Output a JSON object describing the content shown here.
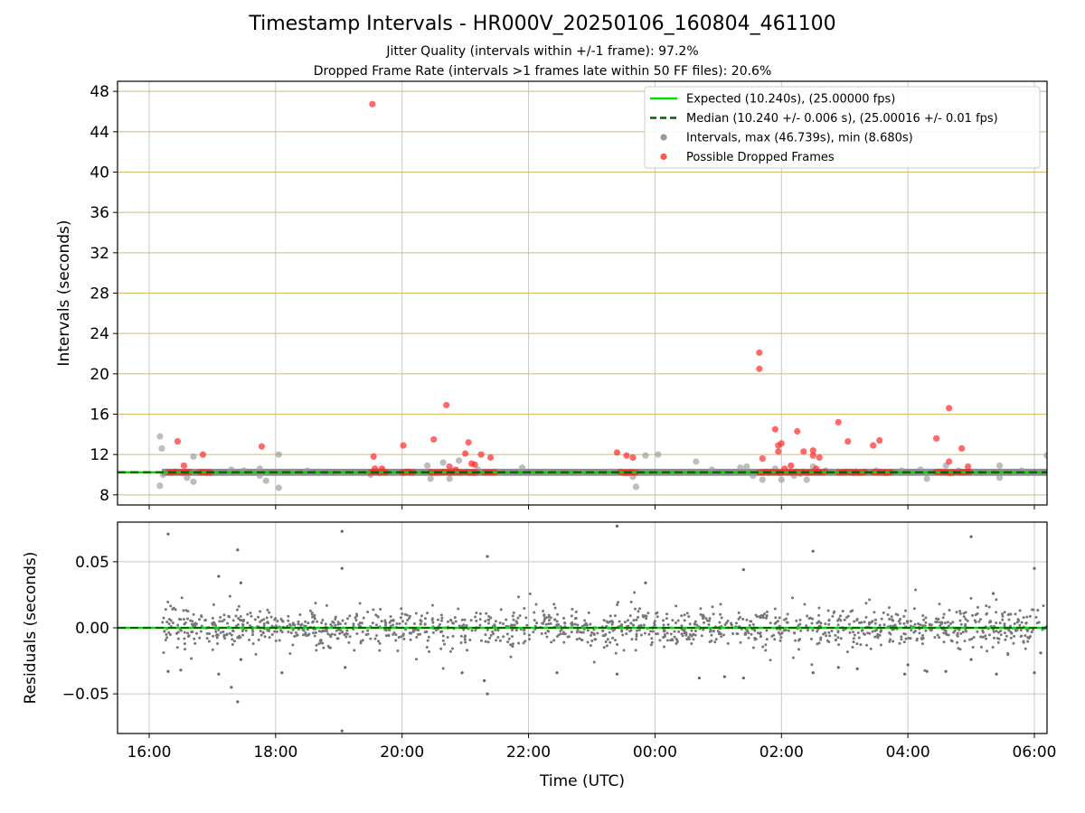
{
  "header": {
    "title": "Timestamp Intervals - HR000V_20250106_160804_461100",
    "subtitle_1": "Jitter Quality (intervals within +/-1 frame): 97.2%",
    "subtitle_2": "Dropped Frame Rate (intervals >1 frames late within 50 FF files): 20.6%"
  },
  "colors": {
    "expected": "#00dd00",
    "median": "#006400",
    "intervals": "#808080",
    "dropped": "#ff0000",
    "hgrid_top": "#d4bb6a",
    "grid": "#c8c8c8"
  },
  "chart_data": [
    {
      "type": "scatter",
      "ylabel": "Intervals (seconds)",
      "ylim": [
        7,
        49
      ],
      "yticks": [
        8,
        12,
        16,
        20,
        24,
        28,
        32,
        36,
        40,
        44,
        48
      ],
      "xlim_hours": [
        15.5,
        30.2
      ],
      "grid": true,
      "legend_position": "upper right",
      "legend": [
        {
          "label": "Expected (10.240s), (25.00000 fps)",
          "style": "solid-line",
          "color": "#00dd00"
        },
        {
          "label": "Median (10.240 +/- 0.006 s), (25.00016 +/- 0.01 fps)",
          "style": "dashed-line",
          "color": "#006400"
        },
        {
          "label": "Intervals, max (46.739s), min (8.680s)",
          "style": "marker",
          "color": "#999999"
        },
        {
          "label": "Possible Dropped Frames",
          "style": "marker",
          "color": "#ff5555"
        }
      ],
      "expected_y": 10.24,
      "median_y": 10.24,
      "baseline_band": {
        "y": 10.24,
        "x_start": 16.2,
        "x_end": 30.2
      },
      "series": [
        {
          "name": "Intervals, max (46.739s), min (8.680s)",
          "points": [
            [
              16.17,
              13.8
            ],
            [
              16.2,
              12.6
            ],
            [
              16.17,
              8.9
            ],
            [
              16.22,
              10.0
            ],
            [
              16.6,
              9.7
            ],
            [
              16.7,
              9.3
            ],
            [
              16.7,
              11.8
            ],
            [
              16.9,
              10.2
            ],
            [
              17.3,
              10.5
            ],
            [
              17.5,
              10.4
            ],
            [
              17.75,
              10.6
            ],
            [
              17.75,
              9.9
            ],
            [
              17.85,
              9.4
            ],
            [
              18.05,
              12.0
            ],
            [
              18.05,
              8.7
            ],
            [
              18.3,
              10.3
            ],
            [
              18.5,
              10.4
            ],
            [
              18.7,
              10.3
            ],
            [
              19.0,
              10.2
            ],
            [
              19.5,
              10.0
            ],
            [
              19.7,
              10.4
            ],
            [
              20.4,
              10.9
            ],
            [
              20.45,
              9.6
            ],
            [
              20.65,
              11.2
            ],
            [
              20.75,
              9.6
            ],
            [
              20.8,
              10.4
            ],
            [
              20.9,
              11.4
            ],
            [
              21.2,
              10.5
            ],
            [
              21.5,
              10.3
            ],
            [
              21.9,
              10.7
            ],
            [
              22.3,
              10.3
            ],
            [
              22.8,
              10.2
            ],
            [
              23.3,
              10.3
            ],
            [
              23.65,
              9.8
            ],
            [
              23.7,
              8.8
            ],
            [
              23.85,
              11.9
            ],
            [
              24.05,
              12.0
            ],
            [
              24.65,
              11.3
            ],
            [
              24.9,
              10.5
            ],
            [
              25.35,
              10.7
            ],
            [
              25.45,
              10.8
            ],
            [
              25.55,
              9.9
            ],
            [
              25.7,
              9.5
            ],
            [
              25.9,
              10.6
            ],
            [
              26.0,
              9.5
            ],
            [
              26.1,
              10.2
            ],
            [
              26.2,
              9.9
            ],
            [
              26.3,
              10.1
            ],
            [
              26.4,
              9.5
            ],
            [
              26.5,
              10.8
            ],
            [
              26.7,
              10.4
            ],
            [
              26.9,
              10.3
            ],
            [
              27.3,
              10.2
            ],
            [
              27.5,
              10.4
            ],
            [
              27.9,
              10.4
            ],
            [
              28.2,
              10.5
            ],
            [
              28.3,
              10.3
            ],
            [
              28.3,
              9.6
            ],
            [
              28.6,
              10.9
            ],
            [
              28.8,
              10.4
            ],
            [
              29.0,
              10.2
            ],
            [
              29.3,
              10.2
            ],
            [
              29.45,
              10.9
            ],
            [
              29.45,
              9.7
            ],
            [
              29.8,
              10.4
            ],
            [
              30.2,
              11.9
            ]
          ]
        },
        {
          "name": "Possible Dropped Frames",
          "points": [
            [
              16.45,
              13.3
            ],
            [
              16.55,
              10.9
            ],
            [
              16.85,
              12.0
            ],
            [
              17.78,
              12.8
            ],
            [
              19.53,
              46.739
            ],
            [
              19.55,
              11.8
            ],
            [
              19.57,
              10.6
            ],
            [
              19.68,
              10.6
            ],
            [
              20.02,
              12.9
            ],
            [
              20.5,
              13.5
            ],
            [
              20.7,
              16.9
            ],
            [
              20.75,
              10.8
            ],
            [
              20.85,
              10.5
            ],
            [
              21.0,
              12.1
            ],
            [
              21.05,
              13.2
            ],
            [
              21.1,
              11.1
            ],
            [
              21.15,
              11.0
            ],
            [
              21.25,
              12.0
            ],
            [
              21.4,
              11.7
            ],
            [
              23.4,
              12.2
            ],
            [
              23.55,
              11.9
            ],
            [
              23.65,
              11.7
            ],
            [
              25.65,
              22.1
            ],
            [
              25.65,
              20.5
            ],
            [
              25.7,
              11.6
            ],
            [
              25.9,
              14.5
            ],
            [
              25.95,
              12.9
            ],
            [
              25.95,
              12.3
            ],
            [
              26.0,
              13.1
            ],
            [
              26.05,
              10.6
            ],
            [
              26.15,
              10.9
            ],
            [
              26.25,
              14.3
            ],
            [
              26.35,
              12.3
            ],
            [
              26.5,
              12.4
            ],
            [
              26.5,
              11.9
            ],
            [
              26.6,
              11.7
            ],
            [
              26.55,
              10.6
            ],
            [
              26.9,
              15.2
            ],
            [
              27.05,
              13.3
            ],
            [
              27.45,
              12.9
            ],
            [
              27.55,
              13.4
            ],
            [
              28.45,
              13.6
            ],
            [
              28.65,
              16.6
            ],
            [
              28.65,
              11.3
            ],
            [
              28.85,
              12.6
            ],
            [
              28.95,
              10.8
            ]
          ],
          "clusters": [
            [
              16.3,
              16.45
            ],
            [
              16.5,
              16.65
            ],
            [
              16.8,
              17.0
            ],
            [
              19.5,
              19.75
            ],
            [
              20.0,
              20.2
            ],
            [
              20.45,
              20.95
            ],
            [
              21.0,
              21.2
            ],
            [
              21.3,
              21.5
            ],
            [
              23.45,
              23.7
            ],
            [
              25.65,
              26.05
            ],
            [
              26.1,
              26.7
            ],
            [
              26.9,
              27.35
            ],
            [
              27.45,
              27.75
            ],
            [
              28.45,
              28.75
            ],
            [
              28.8,
              29.0
            ]
          ]
        }
      ]
    },
    {
      "type": "scatter",
      "ylabel": "Residuals (seconds)",
      "xlabel": "Time (UTC)",
      "ylim": [
        -0.08,
        0.08
      ],
      "yticks": [
        -0.05,
        0.0,
        0.05
      ],
      "ytick_labels": [
        "−0.05",
        "0.00",
        "0.05"
      ],
      "xlim_hours": [
        15.5,
        30.2
      ],
      "xticks_hours": [
        16,
        18,
        20,
        22,
        24,
        26,
        28,
        30
      ],
      "xtick_labels": [
        "16:00",
        "18:00",
        "20:00",
        "22:00",
        "00:00",
        "02:00",
        "04:00",
        "06:00"
      ],
      "grid": true,
      "expected_y": 0.0,
      "series": [
        {
          "name": "Residuals",
          "x_range": [
            16.2,
            30.2
          ],
          "point_count": 1400,
          "core_spread": 0.007,
          "outliers": [
            [
              16.3,
              0.071
            ],
            [
              16.3,
              -0.033
            ],
            [
              16.5,
              -0.032
            ],
            [
              17.1,
              0.039
            ],
            [
              17.1,
              -0.035
            ],
            [
              17.3,
              -0.045
            ],
            [
              17.4,
              0.059
            ],
            [
              17.4,
              -0.056
            ],
            [
              17.45,
              0.034
            ],
            [
              17.45,
              -0.024
            ],
            [
              18.1,
              -0.034
            ],
            [
              19.05,
              0.073
            ],
            [
              19.05,
              0.045
            ],
            [
              19.05,
              -0.078
            ],
            [
              19.1,
              -0.03
            ],
            [
              20.95,
              -0.034
            ],
            [
              21.3,
              -0.04
            ],
            [
              21.35,
              0.054
            ],
            [
              21.35,
              -0.05
            ],
            [
              22.45,
              -0.034
            ],
            [
              23.4,
              0.077
            ],
            [
              23.4,
              -0.035
            ],
            [
              23.85,
              0.034
            ],
            [
              24.7,
              -0.038
            ],
            [
              25.1,
              -0.037
            ],
            [
              25.4,
              0.044
            ],
            [
              25.4,
              -0.038
            ],
            [
              26.5,
              0.058
            ],
            [
              26.5,
              -0.034
            ],
            [
              26.9,
              -0.03
            ],
            [
              27.2,
              -0.031
            ],
            [
              27.95,
              -0.035
            ],
            [
              28.0,
              -0.028
            ],
            [
              28.3,
              -0.033
            ],
            [
              28.6,
              -0.033
            ],
            [
              29.0,
              0.069
            ],
            [
              29.0,
              -0.024
            ],
            [
              29.35,
              0.026
            ],
            [
              29.4,
              -0.035
            ],
            [
              30.0,
              0.045
            ],
            [
              30.0,
              -0.034
            ],
            [
              30.1,
              -0.019
            ]
          ]
        }
      ]
    }
  ]
}
